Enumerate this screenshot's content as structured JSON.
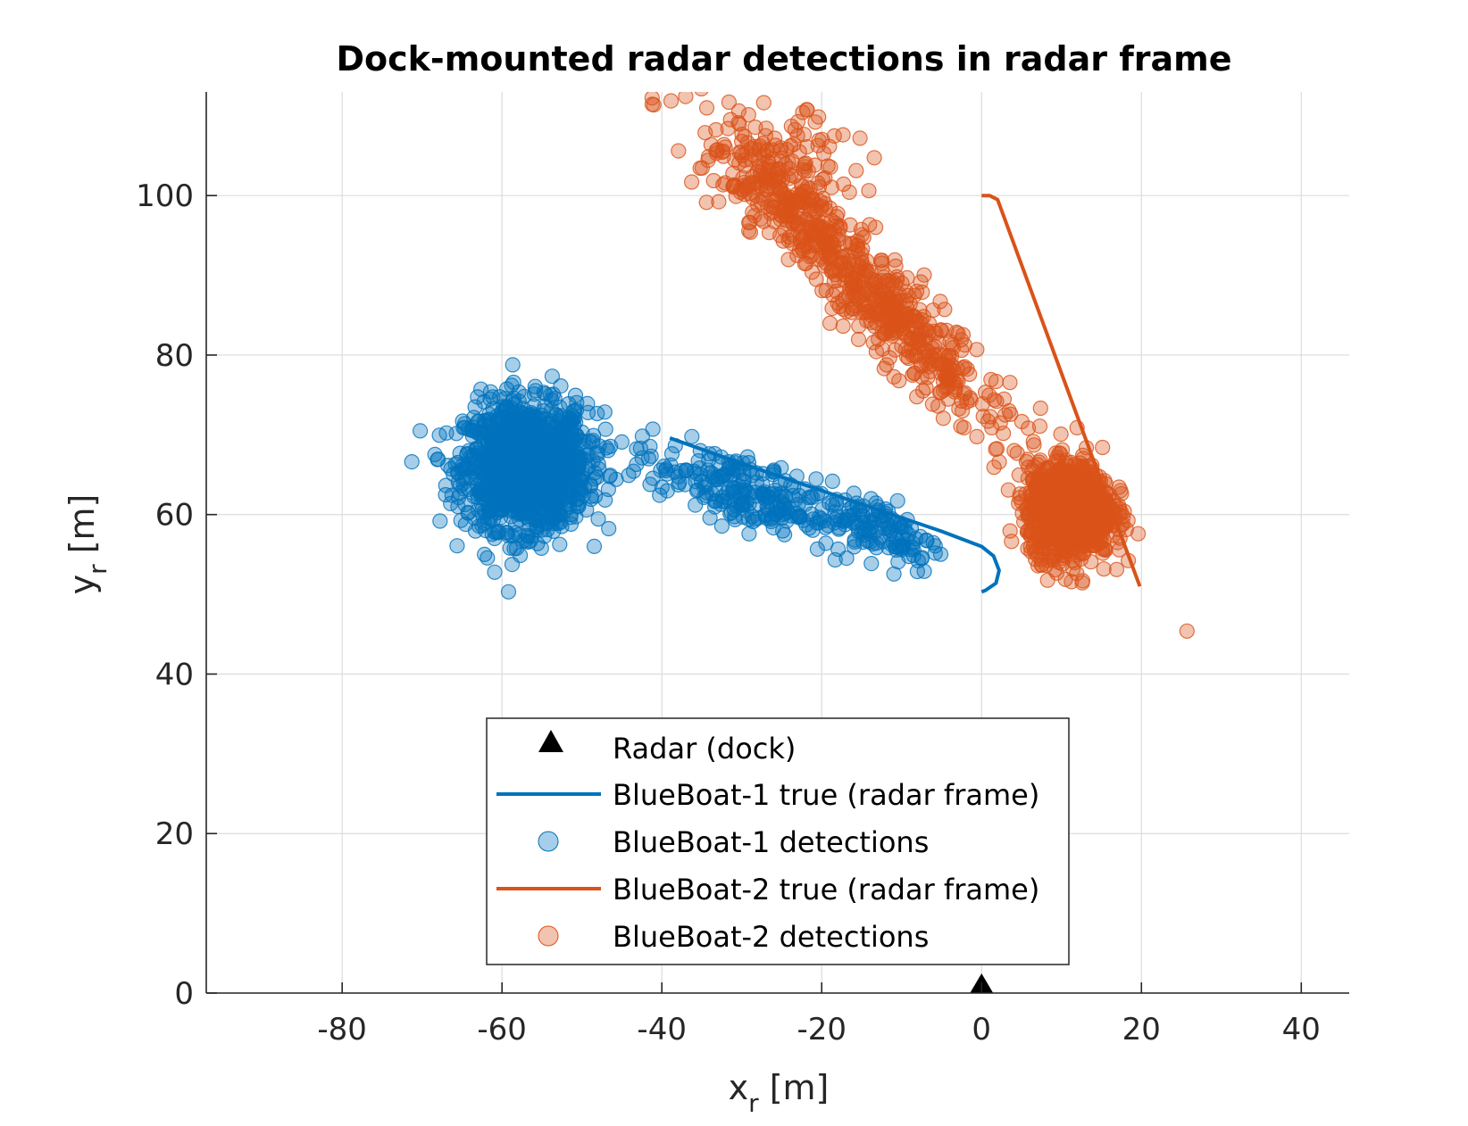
{
  "chart_data": {
    "type": "scatter",
    "title": "Dock-mounted radar detections in radar frame",
    "xlabel": {
      "main": "x",
      "sub": "r",
      "unit": " [m]"
    },
    "ylabel": {
      "main": "y",
      "sub": "r",
      "unit": " [m]"
    },
    "xlim": [
      -97,
      46
    ],
    "ylim": [
      0,
      113
    ],
    "xticks": [
      -80,
      -60,
      -40,
      -20,
      0,
      20,
      40
    ],
    "yticks": [
      0,
      20,
      40,
      60,
      80,
      100
    ],
    "xtick_labels": [
      "-80",
      "-60",
      "-40",
      "-20",
      "0",
      "20",
      "40"
    ],
    "ytick_labels": [
      "0",
      "20",
      "40",
      "60",
      "80",
      "100"
    ],
    "grid": true,
    "legend_position": "bottom-center",
    "radar": {
      "name": "Radar (dock)",
      "x": 0,
      "y": 0,
      "color": "#000000",
      "marker": "triangle"
    },
    "series": [
      {
        "name": "BlueBoat-1 true (radar frame)",
        "kind": "line",
        "color": "#0072BD",
        "x": [
          -39,
          -30,
          -20,
          -10,
          -5,
          0,
          1.5,
          2.2,
          1.8,
          0.5,
          0
        ],
        "y": [
          69.6,
          66.4,
          63.0,
          59.6,
          57.9,
          56.0,
          54.8,
          53.0,
          51.4,
          50.5,
          50.3
        ]
      },
      {
        "name": "BlueBoat-1 detections",
        "kind": "scatter",
        "color": "#0072BD",
        "clusters": [
          {
            "cx": -57,
            "cy": 66,
            "sx": 3.8,
            "sy": 3.9,
            "count": 1400
          },
          {
            "cx": -30,
            "cy": 63,
            "sx": 7.0,
            "sy": 2.2,
            "count": 260,
            "trend": -0.34
          },
          {
            "cx": -12,
            "cy": 58,
            "sx": 3.5,
            "sy": 2.0,
            "count": 110,
            "trend": -0.34
          }
        ]
      },
      {
        "name": "BlueBoat-2 true (radar frame)",
        "kind": "line",
        "color": "#D95319",
        "x": [
          0,
          1,
          2,
          6,
          10,
          14,
          17,
          19.8
        ],
        "y": [
          100.0,
          100.0,
          99.5,
          88.6,
          77.7,
          66.8,
          58.6,
          51.0
        ]
      },
      {
        "name": "BlueBoat-2 detections",
        "kind": "scatter",
        "color": "#D95319",
        "clusters": [
          {
            "cx": 11,
            "cy": 60.5,
            "sx": 2.6,
            "sy": 2.9,
            "count": 1100
          },
          {
            "cx": -15,
            "cy": 89,
            "sx": 9.5,
            "sy": 3.2,
            "count": 650,
            "trend": -1.0
          },
          {
            "cx": -25,
            "cy": 103,
            "sx": 4.5,
            "sy": 3.5,
            "count": 130
          }
        ]
      }
    ]
  }
}
